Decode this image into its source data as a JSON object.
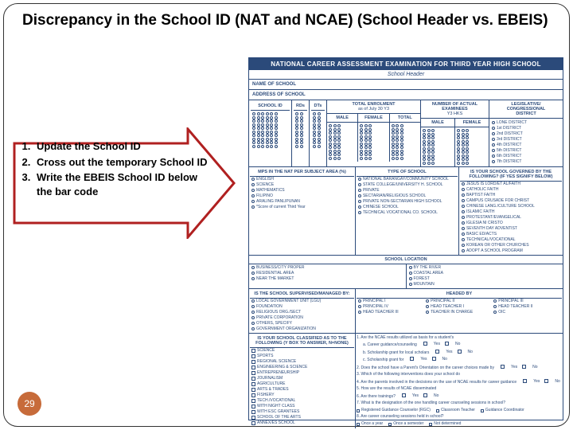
{
  "slide": {
    "title": "Discrepancy in the School ID  (NAT and NCAE) (School Header vs. EBEIS)",
    "page_number": "29"
  },
  "instructions": {
    "item1": "Update the School ID",
    "item2": "Cross out the temporary School ID",
    "item3": "Write the EBEIS School ID below the bar code"
  },
  "arrow": {
    "stroke": "#b02020",
    "stroke_width": 3,
    "fill": "#ffffff"
  },
  "form": {
    "header": "NATIONAL CAREER ASSESSMENT EXAMINATION FOR THIRD YEAR HIGH SCHOOL",
    "subheader": "School Header",
    "name_label": "NAME OF SCHOOL",
    "address_label": "ADDRESS OF SCHOOL",
    "school_id_label": "SCHOOL ID",
    "rds_label": "RDs",
    "dts_label": "DTs",
    "enrolment_title": "TOTAL ENROLMENT",
    "enrolment_sub": "as of July 30 Y3",
    "male": "MALE",
    "female": "FEMALE",
    "total": "TOTAL",
    "examinees_title": "NUMBER OF ACTUAL EXAMINEES",
    "examinees_sub": "Y3 HKS",
    "legislative_title": "LEGISLATIVE/",
    "congressional_title": "CONGRESSIONAL",
    "district_title": "DISTRICT",
    "district_opts": [
      "LONE DISTRICT",
      "1st DISTRICT",
      "2nd DISTRICT",
      "3rd DISTRICT",
      "4th DISTRICT",
      "5th DISTRICT",
      "6th DISTRICT",
      "7th DISTRICT"
    ],
    "school_type_title": "TYPE OF SCHOOL",
    "school_type_opts": [
      "NATIONAL BARANGAY/COMMUNITY SCHOOL",
      "STATE COLLEGE/UNIVERSITY H. SCHOOL",
      "PRIVATE",
      "SECTARIAN/RELIGIOUS SCHOOL",
      "PRIVATE NON-SECTARIAN HIGH SCHOOL",
      "CHINESE SCHOOL",
      "TECHNICAL VOCATIONAL CO. SCHOOL"
    ],
    "governed_title": "IS YOUR SCHOOL GOVERNED BY THE FOLLOWING? (IF YES SIGNIFY BELOW)",
    "governed_opts": [
      "JESUS IS LORD/ET AL/FAITH",
      "CATHOLIC FAITH",
      "BAPTIST FAITH",
      "CAMPUS CRUSADE FOR CHRIST",
      "CHINESE LANG./CULTURE SCHOOL",
      "ISLAMIC FAITH",
      "PROTESTANT/EVANGELICAL",
      "IGLESIA NI CRISTO",
      "SEVENTH DAY ADVENTIST",
      "BASIC ED/ACTS",
      "TECHNICAL/VOCATIONAL",
      "KOREAN OR OTHER CHURCHES",
      "ADOPT A SCHOOL PROGRAM"
    ],
    "mps_title": "MPS IN THE NAT PER SUBJECT AREA (%)",
    "mps_opts": [
      "ENGLISH",
      "SCIENCE",
      "MATHEMATICS",
      "FILIPINO",
      "ARALING PANLIPUNAN",
      "*Score of current Third Year"
    ],
    "location_title": "SCHOOL LOCATION",
    "location_opts": [
      "BUSINESS/CITY PROPER",
      "RESIDENTIAL AREA",
      "NEAR THE MARKET",
      "BY THE RIVER",
      "COASTAL AREA",
      "FOREST",
      "MOUNTAIN"
    ],
    "supervised_title": "IS THE SCHOOL SUPERVISED/MANAGED BY:",
    "supervised_opts": [
      "LOCAL GOVERNMENT UNIT (LGU)",
      "FOUNDATION",
      "RELIGIOUS ORG./SECT",
      "PRIVATE CORPORATION",
      "OTHERS, SPECIFY",
      "GOVERNMENT ORGANIZATION"
    ],
    "headed_title": "HEADED BY",
    "headed_opts": [
      "PRINCIPAL I",
      "PRINCIPAL II",
      "PRINCIPAL III",
      "PRINCIPAL IV",
      "HEAD TEACHER I",
      "HEAD TEACHER II",
      "HEAD TEACHER III",
      "TEACHER IN CHARGE",
      "OIC"
    ],
    "classified_title": "IS YOUR SCHOOL CLASSIFIED AS TO THE FOLLOWING (Y BOX TO ANSWER, N=NONE)",
    "classified_opts": [
      "SCIENCE",
      "SPORTS",
      "REGIONAL SCIENCE",
      "ENGINEERING & SCIENCE",
      "ENTREPRENEURSHIP",
      "JOURNALISM",
      "AGRICULTURE",
      "ARTS & TRADES",
      "FISHERY",
      "TECH./VOCATIONAL",
      "WITH NIGHT CLASS",
      "WITH ESC GRANTEES",
      "SCHOOL OF THE ARTS",
      "ANNEX/ES SCHOOL"
    ],
    "q1": "1. Are the NCAE results utilized as basis for a student's",
    "q1a": "a. Career guidance/counseling",
    "q1b": "b. Scholarship grant for local scholars",
    "q1c": "c. Scholarship grant for",
    "q2": "2. Does the school have a Parent's Orientation on the career choices made by",
    "q3": "3. Which of the following interventions does your school do",
    "q4": "4. Are the parents involved in the decisions on the use of NCAE results for career guidance",
    "q5": "5. How are the results of NCAE disseminated",
    "q6": "6. Are there trainings?",
    "q7": "7. What is the designation of the one handling career counseling sessions in school?",
    "q7_opts": [
      "Registered Guidance Counselor (RGC)",
      "Classroom Teacher",
      "Guidance Coordinator"
    ],
    "q8": "8. Are career counseling sessions held in school?",
    "q8_opts": [
      "Once a year",
      "Once a semester",
      "Not determined"
    ],
    "yes": "Yes",
    "no": "No"
  },
  "colors": {
    "form_blue": "#2b4a7a",
    "page_badge": "#c76b3a"
  }
}
